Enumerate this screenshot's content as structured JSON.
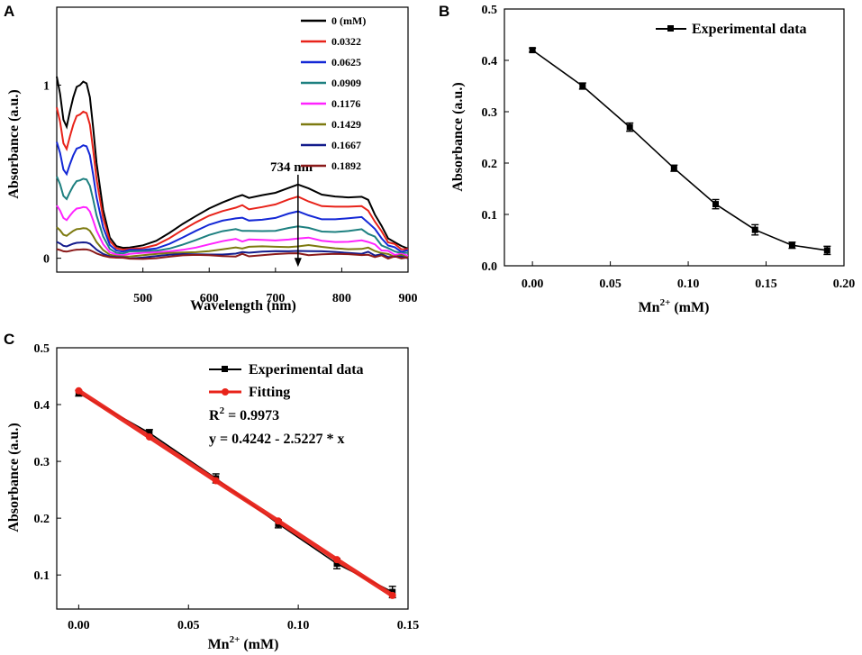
{
  "chart_data": [
    {
      "panel": "A",
      "type": "line",
      "xlabel": "Wavelength (nm)",
      "ylabel": "Absorbance (a.u.)",
      "xlim": [
        370,
        900
      ],
      "ylim": [
        -0.08,
        1.45
      ],
      "xticks": [
        "500",
        "600",
        "700",
        "800",
        "900"
      ],
      "yticks": [
        "0",
        "1"
      ],
      "annotation": "734 nm",
      "legend_position": "top-right",
      "series": [
        {
          "name": "0 (mM)",
          "color": "#000000",
          "scale": 1.0
        },
        {
          "name": "0.0322",
          "color": "#e8231a",
          "scale": 0.83
        },
        {
          "name": "0.0625",
          "color": "#1428d6",
          "scale": 0.64
        },
        {
          "name": "0.0909",
          "color": "#1e8080",
          "scale": 0.45
        },
        {
          "name": "0.1176",
          "color": "#ff22ff",
          "scale": 0.29
        },
        {
          "name": "0.1429",
          "color": "#7d7a10",
          "scale": 0.17
        },
        {
          "name": "0.1667",
          "color": "#141c8c",
          "scale": 0.09
        },
        {
          "name": "0.1892",
          "color": "#8b1a1a",
          "scale": 0.05
        }
      ],
      "base_spectrum": {
        "x": [
          370,
          375,
          380,
          385,
          390,
          395,
          400,
          405,
          410,
          415,
          420,
          425,
          430,
          440,
          450,
          460,
          470,
          480,
          500,
          520,
          540,
          560,
          580,
          600,
          620,
          640,
          650,
          660,
          680,
          700,
          720,
          734,
          750,
          770,
          790,
          810,
          830,
          840,
          850,
          860,
          870,
          880,
          890,
          900
        ],
        "y": [
          1.05,
          0.95,
          0.8,
          0.76,
          0.85,
          0.93,
          0.99,
          1.0,
          1.02,
          1.01,
          0.93,
          0.75,
          0.55,
          0.28,
          0.12,
          0.07,
          0.06,
          0.07,
          0.08,
          0.1,
          0.14,
          0.19,
          0.24,
          0.29,
          0.33,
          0.36,
          0.36,
          0.35,
          0.36,
          0.37,
          0.4,
          0.42,
          0.4,
          0.36,
          0.35,
          0.35,
          0.36,
          0.33,
          0.26,
          0.18,
          0.12,
          0.09,
          0.07,
          0.06
        ]
      },
      "arrow": {
        "x": 734,
        "y_from": 0.42,
        "y_to": -0.05
      }
    },
    {
      "panel": "B",
      "type": "line",
      "xlabel": "Mn²⁺ (mM)",
      "ylabel": "Absorbance (a.u.)",
      "xlim": [
        -0.018,
        0.2
      ],
      "ylim": [
        0,
        0.5
      ],
      "xticks": [
        0,
        0.05,
        0.1,
        0.15,
        0.2
      ],
      "xtick_labels": [
        "0.00",
        "0.05",
        "0.10",
        "0.15",
        "0.20"
      ],
      "yticks": [
        0,
        0.1,
        0.2,
        0.3,
        0.4,
        0.5
      ],
      "ytick_labels": [
        "0.0",
        "0.1",
        "0.2",
        "0.3",
        "0.4",
        "0.5"
      ],
      "legend_position": "top-right",
      "series": [
        {
          "name": "Experimental data",
          "color": "#000000",
          "x": [
            0,
            0.0322,
            0.0625,
            0.0909,
            0.1176,
            0.1429,
            0.1667,
            0.1892
          ],
          "y": [
            0.42,
            0.35,
            0.27,
            0.19,
            0.12,
            0.07,
            0.04,
            0.03
          ],
          "err": [
            0.004,
            0.006,
            0.008,
            0.006,
            0.009,
            0.01,
            0.006,
            0.008
          ]
        }
      ]
    },
    {
      "panel": "C",
      "type": "line",
      "xlabel": "Mn²⁺ (mM)",
      "ylabel": "Absorbance (a.u.)",
      "xlim": [
        -0.01,
        0.15
      ],
      "ylim": [
        0.04,
        0.5
      ],
      "xticks": [
        0,
        0.05,
        0.1,
        0.15
      ],
      "xtick_labels": [
        "0.00",
        "0.05",
        "0.10",
        "0.15"
      ],
      "yticks": [
        0.1,
        0.2,
        0.3,
        0.4,
        0.5
      ],
      "ytick_labels": [
        "0.1",
        "0.2",
        "0.3",
        "0.4",
        "0.5"
      ],
      "legend_position": "top-right",
      "series": [
        {
          "name": "Experimental data",
          "color": "#000000",
          "x": [
            0,
            0.0322,
            0.0625,
            0.0909,
            0.1176,
            0.1429
          ],
          "y": [
            0.42,
            0.35,
            0.27,
            0.19,
            0.12,
            0.07
          ],
          "err": [
            0.005,
            0.006,
            0.008,
            0.007,
            0.009,
            0.01
          ]
        },
        {
          "name": "Fitting",
          "color": "#e8231a",
          "x": [
            0,
            0.0322,
            0.0625,
            0.0909,
            0.1176,
            0.1429
          ],
          "y": [
            0.4242,
            0.343,
            0.266,
            0.195,
            0.127,
            0.064
          ]
        }
      ],
      "r2_label": "R",
      "r2_value": "= 0.9973",
      "equation": "y = 0.4242 - 2.5227 * x"
    }
  ]
}
